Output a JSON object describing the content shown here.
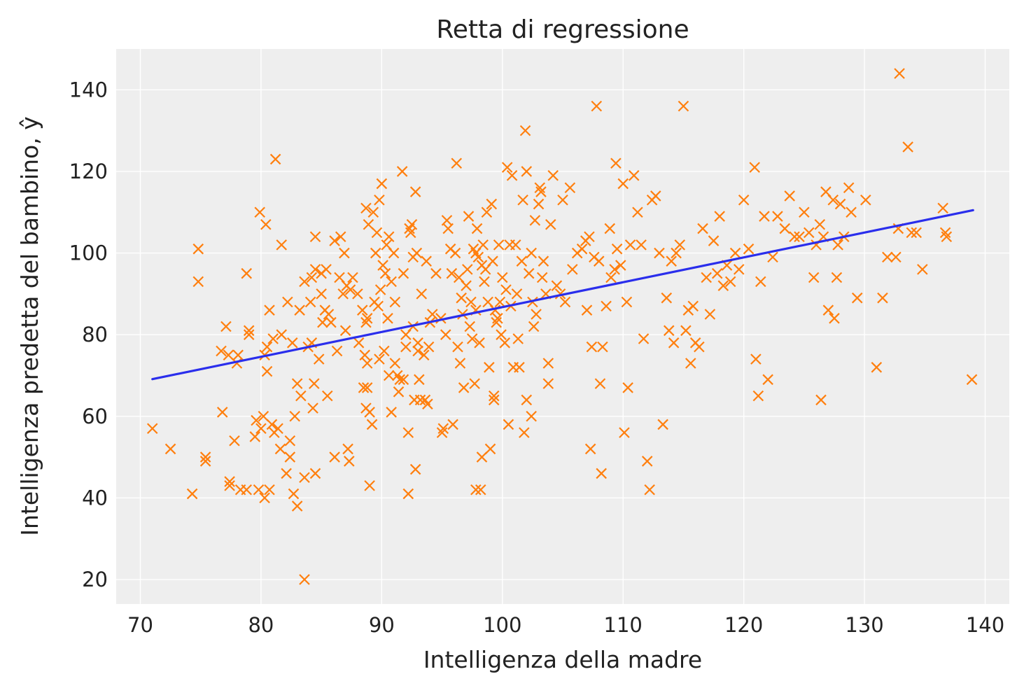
{
  "chart_data": {
    "type": "scatter",
    "title": "Retta di regressione",
    "xlabel": "Intelligenza della madre",
    "ylabel": "Intelligenza predetta del bambino, ŷ",
    "xlim": [
      68,
      142
    ],
    "ylim": [
      14,
      150
    ],
    "xticks": [
      70,
      80,
      90,
      100,
      110,
      120,
      130,
      140
    ],
    "yticks": [
      20,
      40,
      60,
      80,
      100,
      120,
      140
    ],
    "grid": true,
    "colors": {
      "background": "#eeeeee",
      "points": "#ff7f0e",
      "line": "#2a2eec"
    },
    "regression_line": {
      "x": [
        71.0,
        139.0
      ],
      "y": [
        69.1,
        110.5
      ]
    },
    "points": [
      [
        71,
        57
      ],
      [
        72.5,
        52
      ],
      [
        74.3,
        41
      ],
      [
        74.8,
        101
      ],
      [
        74.8,
        93
      ],
      [
        75.4,
        50
      ],
      [
        75.4,
        49
      ],
      [
        76.7,
        76
      ],
      [
        76.8,
        61
      ],
      [
        77.1,
        82
      ],
      [
        77.3,
        75
      ],
      [
        77.4,
        44
      ],
      [
        77.4,
        43
      ],
      [
        77.8,
        54
      ],
      [
        78.0,
        73
      ],
      [
        78.1,
        75
      ],
      [
        78.3,
        42
      ],
      [
        78.8,
        95
      ],
      [
        78.8,
        42
      ],
      [
        79.0,
        81
      ],
      [
        79.0,
        80
      ],
      [
        79.5,
        55
      ],
      [
        79.6,
        59
      ],
      [
        79.8,
        42
      ],
      [
        79.9,
        110
      ],
      [
        80.0,
        57
      ],
      [
        80.2,
        60
      ],
      [
        80.3,
        40
      ],
      [
        80.3,
        75
      ],
      [
        80.4,
        107
      ],
      [
        80.5,
        77
      ],
      [
        80.5,
        71
      ],
      [
        80.7,
        86
      ],
      [
        80.7,
        42
      ],
      [
        80.9,
        58
      ],
      [
        81.0,
        79
      ],
      [
        81.1,
        56
      ],
      [
        81.2,
        123
      ],
      [
        81.4,
        57
      ],
      [
        81.6,
        52
      ],
      [
        81.7,
        102
      ],
      [
        81.7,
        80
      ],
      [
        82.1,
        46
      ],
      [
        82.2,
        88
      ],
      [
        82.4,
        54
      ],
      [
        82.4,
        50
      ],
      [
        82.6,
        78
      ],
      [
        82.7,
        41
      ],
      [
        82.8,
        60
      ],
      [
        83.0,
        38
      ],
      [
        83.0,
        68
      ],
      [
        83.2,
        86
      ],
      [
        83.3,
        65
      ],
      [
        83.6,
        45
      ],
      [
        83.6,
        93
      ],
      [
        83.6,
        20
      ],
      [
        83.9,
        77
      ],
      [
        84.1,
        88
      ],
      [
        84.2,
        94
      ],
      [
        84.2,
        78
      ],
      [
        84.3,
        62
      ],
      [
        84.4,
        68
      ],
      [
        84.5,
        96
      ],
      [
        84.5,
        46
      ],
      [
        84.5,
        104
      ],
      [
        84.8,
        74
      ],
      [
        85.0,
        95
      ],
      [
        85.0,
        90
      ],
      [
        85.1,
        83
      ],
      [
        85.3,
        86
      ],
      [
        85.4,
        96
      ],
      [
        85.5,
        65
      ],
      [
        85.6,
        85
      ],
      [
        85.8,
        83
      ],
      [
        86.1,
        103
      ],
      [
        86.1,
        50
      ],
      [
        86.3,
        76
      ],
      [
        86.5,
        94
      ],
      [
        86.6,
        104
      ],
      [
        86.8,
        90
      ],
      [
        86.9,
        100
      ],
      [
        87.0,
        81
      ],
      [
        87.1,
        92
      ],
      [
        87.2,
        52
      ],
      [
        87.3,
        49
      ],
      [
        87.4,
        91
      ],
      [
        87.6,
        94
      ],
      [
        88.0,
        90
      ],
      [
        88.1,
        78
      ],
      [
        88.4,
        86
      ],
      [
        88.5,
        67
      ],
      [
        88.6,
        75
      ],
      [
        88.7,
        83
      ],
      [
        88.7,
        62
      ],
      [
        88.7,
        111
      ],
      [
        88.8,
        84
      ],
      [
        88.8,
        73
      ],
      [
        88.8,
        67
      ],
      [
        88.9,
        107
      ],
      [
        89.0,
        43
      ],
      [
        89.0,
        61
      ],
      [
        89.2,
        58
      ],
      [
        89.3,
        110
      ],
      [
        89.4,
        88
      ],
      [
        89.5,
        100
      ],
      [
        89.6,
        105
      ],
      [
        89.7,
        87
      ],
      [
        89.8,
        113
      ],
      [
        89.8,
        74
      ],
      [
        89.9,
        91
      ],
      [
        90.0,
        117
      ],
      [
        90.1,
        97
      ],
      [
        90.2,
        76
      ],
      [
        90.3,
        95
      ],
      [
        90.4,
        102
      ],
      [
        90.5,
        84
      ],
      [
        90.6,
        104
      ],
      [
        90.6,
        70
      ],
      [
        90.8,
        93
      ],
      [
        90.8,
        61
      ],
      [
        91.0,
        100
      ],
      [
        91.1,
        73
      ],
      [
        91.1,
        88
      ],
      [
        91.3,
        70
      ],
      [
        91.4,
        66
      ],
      [
        91.5,
        69
      ],
      [
        91.7,
        120
      ],
      [
        91.8,
        95
      ],
      [
        91.8,
        69
      ],
      [
        92.0,
        77
      ],
      [
        92.0,
        80
      ],
      [
        92.2,
        56
      ],
      [
        92.2,
        41
      ],
      [
        92.3,
        106
      ],
      [
        92.4,
        105
      ],
      [
        92.5,
        107
      ],
      [
        92.6,
        99
      ],
      [
        92.6,
        82
      ],
      [
        92.7,
        64
      ],
      [
        92.8,
        115
      ],
      [
        92.8,
        47
      ],
      [
        92.9,
        100
      ],
      [
        93.0,
        78
      ],
      [
        93.0,
        76
      ],
      [
        93.1,
        69
      ],
      [
        93.2,
        64
      ],
      [
        93.3,
        90
      ],
      [
        93.5,
        75
      ],
      [
        93.6,
        64
      ],
      [
        93.7,
        98
      ],
      [
        93.8,
        63
      ],
      [
        93.9,
        77
      ],
      [
        94.0,
        83
      ],
      [
        94.2,
        85
      ],
      [
        94.5,
        95
      ],
      [
        94.9,
        84
      ],
      [
        95.0,
        56
      ],
      [
        95.1,
        57
      ],
      [
        95.3,
        80
      ],
      [
        95.4,
        108
      ],
      [
        95.5,
        106
      ],
      [
        95.7,
        101
      ],
      [
        95.8,
        95
      ],
      [
        95.9,
        58
      ],
      [
        96.1,
        100
      ],
      [
        96.2,
        122
      ],
      [
        96.3,
        77
      ],
      [
        96.4,
        94
      ],
      [
        96.5,
        73
      ],
      [
        96.6,
        89
      ],
      [
        96.7,
        85
      ],
      [
        96.8,
        67
      ],
      [
        97.0,
        92
      ],
      [
        97.1,
        96
      ],
      [
        97.2,
        109
      ],
      [
        97.3,
        82
      ],
      [
        97.4,
        88
      ],
      [
        97.5,
        79
      ],
      [
        97.6,
        101
      ],
      [
        97.7,
        68
      ],
      [
        97.8,
        100
      ],
      [
        97.8,
        42
      ],
      [
        97.8,
        86
      ],
      [
        97.9,
        106
      ],
      [
        98.0,
        99
      ],
      [
        98.1,
        78
      ],
      [
        98.2,
        42
      ],
      [
        98.3,
        50
      ],
      [
        98.3,
        97
      ],
      [
        98.4,
        102
      ],
      [
        98.5,
        93
      ],
      [
        98.6,
        96
      ],
      [
        98.7,
        110
      ],
      [
        98.8,
        88
      ],
      [
        98.9,
        72
      ],
      [
        99.0,
        52
      ],
      [
        99.1,
        112
      ],
      [
        99.2,
        98
      ],
      [
        99.3,
        64
      ],
      [
        99.3,
        65
      ],
      [
        99.4,
        86
      ],
      [
        99.5,
        83
      ],
      [
        99.6,
        84
      ],
      [
        99.7,
        102
      ],
      [
        99.8,
        88
      ],
      [
        99.9,
        80
      ],
      [
        100.0,
        94
      ],
      [
        100.2,
        78
      ],
      [
        100.3,
        91
      ],
      [
        100.4,
        121
      ],
      [
        100.5,
        58
      ],
      [
        100.6,
        102
      ],
      [
        100.7,
        87
      ],
      [
        100.8,
        119
      ],
      [
        100.9,
        72
      ],
      [
        101.1,
        102
      ],
      [
        101.2,
        90
      ],
      [
        101.3,
        79
      ],
      [
        101.4,
        72
      ],
      [
        101.6,
        98
      ],
      [
        101.7,
        113
      ],
      [
        101.8,
        56
      ],
      [
        101.9,
        130
      ],
      [
        102.0,
        120
      ],
      [
        102.0,
        64
      ],
      [
        102.2,
        95
      ],
      [
        102.4,
        100
      ],
      [
        102.4,
        60
      ],
      [
        102.5,
        88
      ],
      [
        102.6,
        82
      ],
      [
        102.7,
        108
      ],
      [
        102.8,
        85
      ],
      [
        103.0,
        112
      ],
      [
        103.1,
        116
      ],
      [
        103.2,
        115
      ],
      [
        103.3,
        94
      ],
      [
        103.4,
        98
      ],
      [
        103.6,
        90
      ],
      [
        103.8,
        73
      ],
      [
        103.8,
        68
      ],
      [
        104.0,
        107
      ],
      [
        104.2,
        119
      ],
      [
        104.5,
        92
      ],
      [
        104.8,
        90
      ],
      [
        105.0,
        113
      ],
      [
        105.2,
        88
      ],
      [
        105.6,
        116
      ],
      [
        105.8,
        96
      ],
      [
        106.2,
        100
      ],
      [
        106.6,
        101
      ],
      [
        106.9,
        103
      ],
      [
        107.0,
        86
      ],
      [
        107.2,
        104
      ],
      [
        107.3,
        52
      ],
      [
        107.4,
        77
      ],
      [
        107.6,
        99
      ],
      [
        107.8,
        136
      ],
      [
        108.0,
        98
      ],
      [
        108.1,
        68
      ],
      [
        108.2,
        46
      ],
      [
        108.3,
        77
      ],
      [
        108.6,
        87
      ],
      [
        108.9,
        106
      ],
      [
        109.0,
        94
      ],
      [
        109.3,
        96
      ],
      [
        109.4,
        122
      ],
      [
        109.5,
        101
      ],
      [
        109.8,
        97
      ],
      [
        110.0,
        117
      ],
      [
        110.1,
        56
      ],
      [
        110.3,
        88
      ],
      [
        110.4,
        67
      ],
      [
        110.6,
        102
      ],
      [
        110.9,
        119
      ],
      [
        111.2,
        110
      ],
      [
        111.5,
        102
      ],
      [
        111.7,
        79
      ],
      [
        112.0,
        49
      ],
      [
        112.2,
        42
      ],
      [
        112.4,
        113
      ],
      [
        112.7,
        114
      ],
      [
        113.0,
        100
      ],
      [
        113.3,
        58
      ],
      [
        113.6,
        89
      ],
      [
        113.8,
        81
      ],
      [
        114.0,
        98
      ],
      [
        114.2,
        78
      ],
      [
        114.4,
        100
      ],
      [
        114.7,
        102
      ],
      [
        115.0,
        136
      ],
      [
        115.2,
        81
      ],
      [
        115.4,
        86
      ],
      [
        115.6,
        73
      ],
      [
        115.8,
        87
      ],
      [
        116.0,
        78
      ],
      [
        116.3,
        77
      ],
      [
        116.6,
        106
      ],
      [
        116.9,
        94
      ],
      [
        117.2,
        85
      ],
      [
        117.5,
        103
      ],
      [
        117.8,
        95
      ],
      [
        118.0,
        109
      ],
      [
        118.3,
        92
      ],
      [
        118.6,
        97
      ],
      [
        118.9,
        93
      ],
      [
        119.3,
        100
      ],
      [
        119.6,
        96
      ],
      [
        120.0,
        113
      ],
      [
        120.4,
        101
      ],
      [
        120.9,
        121
      ],
      [
        121.0,
        74
      ],
      [
        121.2,
        65
      ],
      [
        121.4,
        93
      ],
      [
        121.7,
        109
      ],
      [
        122.0,
        69
      ],
      [
        122.4,
        99
      ],
      [
        122.8,
        109
      ],
      [
        123.4,
        106
      ],
      [
        123.8,
        114
      ],
      [
        124.2,
        104
      ],
      [
        124.6,
        104
      ],
      [
        125.0,
        110
      ],
      [
        125.4,
        105
      ],
      [
        125.8,
        94
      ],
      [
        126.0,
        102
      ],
      [
        126.3,
        107
      ],
      [
        126.4,
        64
      ],
      [
        126.6,
        104
      ],
      [
        126.8,
        115
      ],
      [
        127.0,
        86
      ],
      [
        127.4,
        113
      ],
      [
        127.5,
        84
      ],
      [
        127.7,
        94
      ],
      [
        127.8,
        102
      ],
      [
        128.0,
        112
      ],
      [
        128.3,
        104
      ],
      [
        128.7,
        116
      ],
      [
        128.9,
        110
      ],
      [
        129.4,
        89
      ],
      [
        130.1,
        113
      ],
      [
        131.0,
        72
      ],
      [
        131.5,
        89
      ],
      [
        131.9,
        99
      ],
      [
        132.6,
        99
      ],
      [
        132.8,
        106
      ],
      [
        132.9,
        144
      ],
      [
        133.6,
        126
      ],
      [
        133.9,
        105
      ],
      [
        134.3,
        105
      ],
      [
        134.8,
        96
      ],
      [
        136.5,
        111
      ],
      [
        136.7,
        105
      ],
      [
        136.8,
        104
      ],
      [
        138.9,
        69
      ]
    ]
  }
}
